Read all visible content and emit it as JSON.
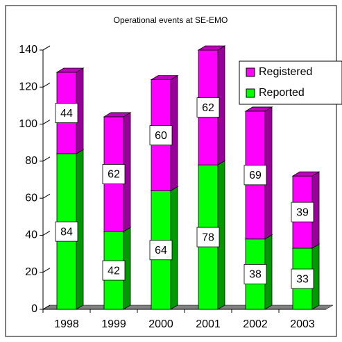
{
  "chart_data": {
    "type": "bar3d_stacked",
    "title": "Operational events at SE-EMO",
    "categories": [
      "1998",
      "1999",
      "2000",
      "2001",
      "2002",
      "2003"
    ],
    "series": [
      {
        "name": "Reported",
        "color": "#00ff00",
        "values": [
          84,
          42,
          64,
          78,
          38,
          33
        ]
      },
      {
        "name": "Registered",
        "color": "#ff00ff",
        "values": [
          44,
          62,
          60,
          62,
          69,
          39
        ]
      }
    ],
    "ylim": [
      0,
      140
    ],
    "yticks": [
      0,
      20,
      40,
      60,
      80,
      100,
      120,
      140
    ],
    "legend": "upper right"
  }
}
